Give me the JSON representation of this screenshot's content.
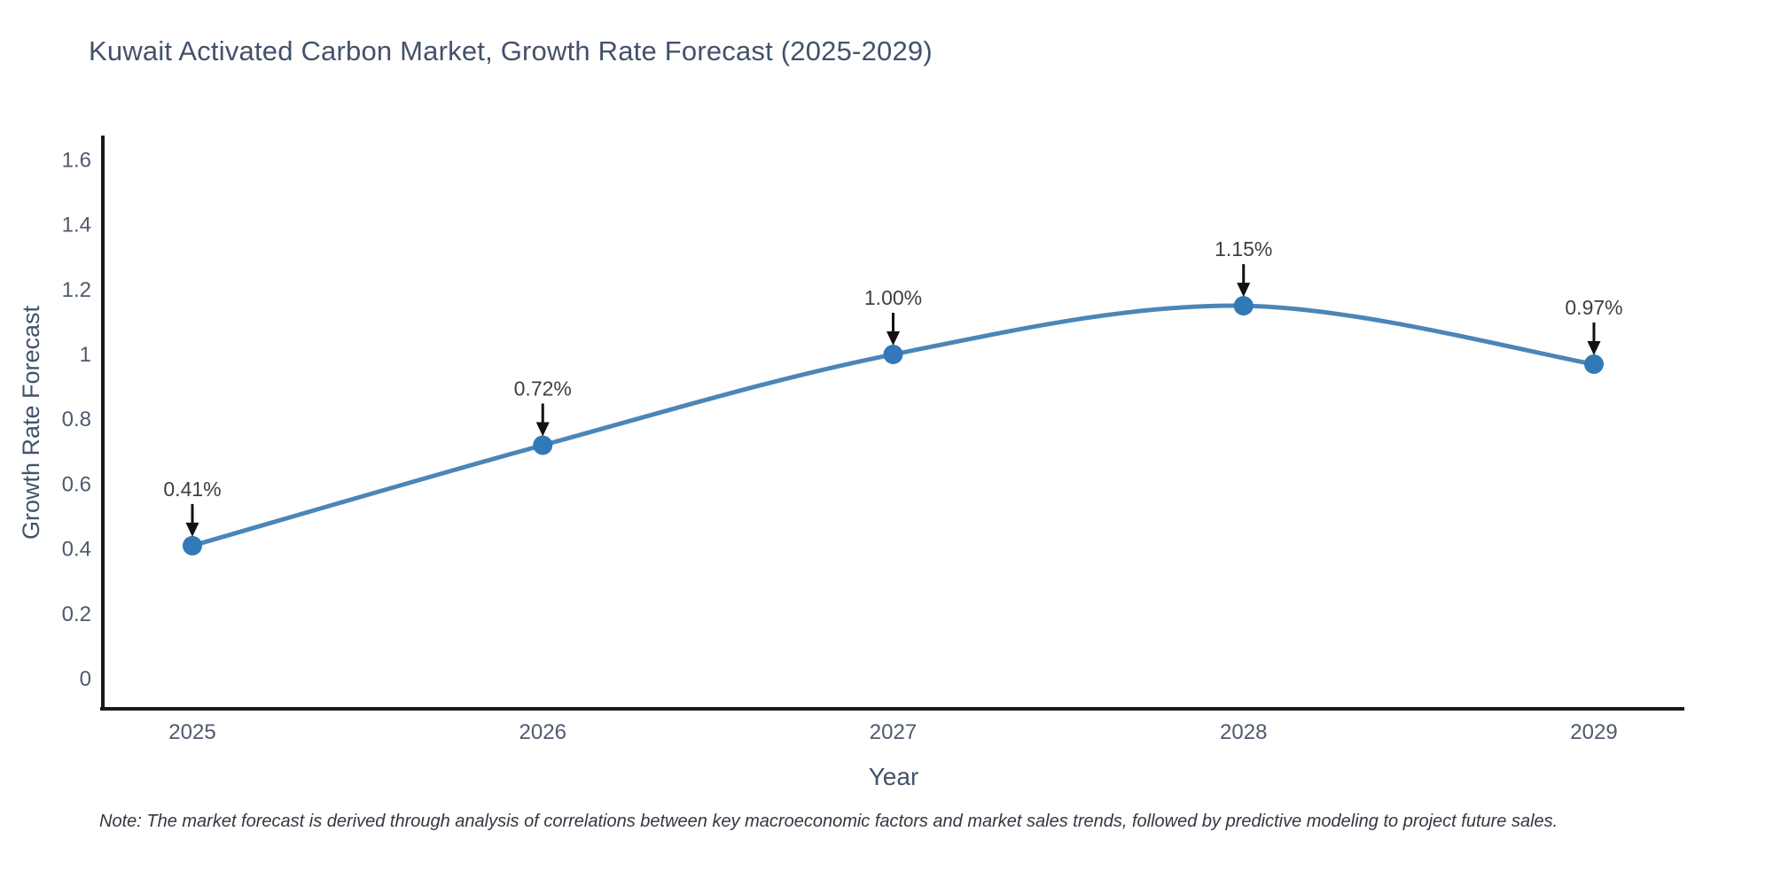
{
  "note": "Note: The market forecast is derived through analysis of correlations between key macroeconomic factors and market sales trends, followed by predictive modeling to project future sales.",
  "chart_data": {
    "type": "line",
    "title": "Kuwait Activated Carbon Market, Growth Rate Forecast (2025-2029)",
    "xlabel": "Year",
    "ylabel": "Growth Rate Forecast",
    "categories": [
      "2025",
      "2026",
      "2027",
      "2028",
      "2029"
    ],
    "series": [
      {
        "name": "Growth Rate Forecast",
        "values": [
          0.41,
          0.72,
          1.0,
          1.15,
          0.97
        ],
        "point_labels": [
          "0.41%",
          "0.72%",
          "1.00%",
          "1.15%",
          "0.97%"
        ]
      }
    ],
    "y_tick_values": [
      0,
      0.2,
      0.4,
      0.6,
      0.8,
      1,
      1.2,
      1.4,
      1.6
    ],
    "y_tick_labels": [
      "0",
      "0.2",
      "0.4",
      "0.6",
      "0.8",
      "1",
      "1.2",
      "1.4",
      "1.6"
    ],
    "ylim": [
      -0.093,
      1.675
    ],
    "grid": false,
    "legend_position": "none",
    "line_shape": "spline",
    "annotation_style": "value labels with downward arrows above each point"
  },
  "colors": {
    "line": "#4a86b8",
    "marker": "#3279b7",
    "title_text": "#42526b",
    "axis_text": "#4e5a6e",
    "annotation_text": "#3f3f3f",
    "arrow": "#111111",
    "spine": "#1a1a1a",
    "note_text": "#333740",
    "background": "#ffffff"
  }
}
